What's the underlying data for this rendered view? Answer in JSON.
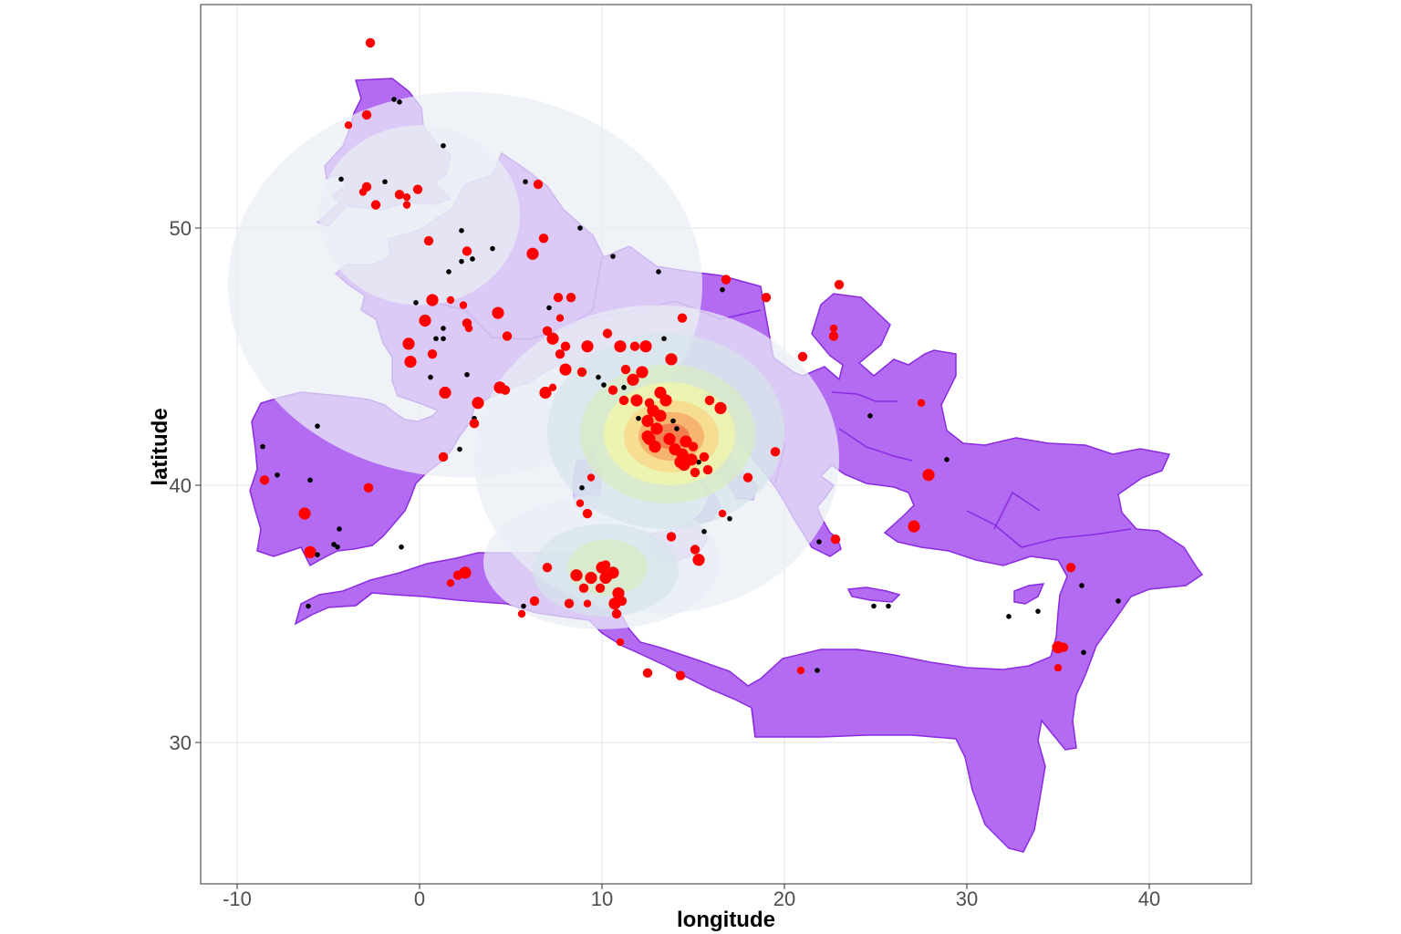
{
  "chart_data": {
    "type": "scatter",
    "title": "",
    "xlabel": "longitude",
    "ylabel": "latitude",
    "xlim": [
      -12.1,
      45.6
    ],
    "ylim": [
      24.6,
      60.5
    ],
    "x_ticks": [
      -10,
      0,
      10,
      20,
      30,
      40
    ],
    "x_tick_labels": [
      "-10",
      "0",
      "10",
      "20",
      "30",
      "40"
    ],
    "y_ticks": [
      30,
      40,
      50
    ],
    "y_tick_labels": [
      "30",
      "40",
      "50"
    ],
    "grid": true,
    "legend": "none",
    "colors": {
      "territory_fill": "#b36bf2",
      "territory_border": "#8a2be2",
      "point_large": "#ff0000",
      "point_small": "#000000",
      "density_palette": [
        "#e9eef5",
        "#d6e4ea",
        "#d8ecc2",
        "#f4f5a6",
        "#fbd487",
        "#f6a45f",
        "#ee6b45"
      ]
    },
    "density_layers": [
      {
        "cx": 2.5,
        "cy": 47.8,
        "rx": 13.0,
        "ry": 7.5,
        "level": 0
      },
      {
        "cx": 13.0,
        "cy": 41.0,
        "rx": 10.0,
        "ry": 6.0,
        "level": 0
      },
      {
        "cx": 10.0,
        "cy": 37.0,
        "rx": 6.5,
        "ry": 2.6,
        "level": 0
      },
      {
        "cx": 0.0,
        "cy": 50.5,
        "rx": 5.5,
        "ry": 3.5,
        "level": 0
      },
      {
        "cx": 13.5,
        "cy": 42.1,
        "rx": 6.5,
        "ry": 3.8,
        "level": 1
      },
      {
        "cx": 10.2,
        "cy": 36.7,
        "rx": 4.0,
        "ry": 1.8,
        "level": 1
      },
      {
        "cx": 13.6,
        "cy": 42.0,
        "rx": 4.8,
        "ry": 2.7,
        "level": 2
      },
      {
        "cx": 10.3,
        "cy": 36.8,
        "rx": 2.2,
        "ry": 1.1,
        "level": 2
      },
      {
        "cx": 13.7,
        "cy": 42.0,
        "rx": 3.6,
        "ry": 2.0,
        "level": 3
      },
      {
        "cx": 13.8,
        "cy": 41.9,
        "rx": 2.6,
        "ry": 1.4,
        "level": 4
      },
      {
        "cx": 13.8,
        "cy": 41.9,
        "rx": 1.8,
        "ry": 0.95,
        "level": 5
      },
      {
        "cx": 13.8,
        "cy": 41.9,
        "rx": 1.0,
        "ry": 0.5,
        "level": 6
      }
    ],
    "points": [
      {
        "x": -2.7,
        "y": 57.2,
        "size": "medium"
      },
      {
        "x": -3.9,
        "y": 54.0,
        "size": "small"
      },
      {
        "x": -2.9,
        "y": 54.4,
        "size": "medium"
      },
      {
        "x": -1.4,
        "y": 55.0,
        "size": "tiny"
      },
      {
        "x": -1.1,
        "y": 54.9,
        "size": "tiny"
      },
      {
        "x": 1.3,
        "y": 53.2,
        "size": "tiny"
      },
      {
        "x": -4.3,
        "y": 51.9,
        "size": "tiny"
      },
      {
        "x": -2.9,
        "y": 51.6,
        "size": "medium"
      },
      {
        "x": -1.9,
        "y": 51.8,
        "size": "tiny"
      },
      {
        "x": -1.1,
        "y": 51.3,
        "size": "medium"
      },
      {
        "x": -0.7,
        "y": 51.2,
        "size": "small"
      },
      {
        "x": -0.1,
        "y": 51.5,
        "size": "medium"
      },
      {
        "x": -2.4,
        "y": 50.9,
        "size": "medium"
      },
      {
        "x": -3.1,
        "y": 51.4,
        "size": "small"
      },
      {
        "x": -0.7,
        "y": 50.9,
        "size": "small"
      },
      {
        "x": 5.8,
        "y": 51.8,
        "size": "tiny"
      },
      {
        "x": 6.5,
        "y": 51.7,
        "size": "medium"
      },
      {
        "x": 8.8,
        "y": 50.0,
        "size": "tiny"
      },
      {
        "x": 2.3,
        "y": 49.9,
        "size": "tiny"
      },
      {
        "x": 0.5,
        "y": 49.5,
        "size": "medium"
      },
      {
        "x": 2.6,
        "y": 49.1,
        "size": "medium"
      },
      {
        "x": 2.9,
        "y": 48.8,
        "size": "tiny"
      },
      {
        "x": 2.3,
        "y": 48.7,
        "size": "tiny"
      },
      {
        "x": 4.0,
        "y": 49.2,
        "size": "tiny"
      },
      {
        "x": 6.8,
        "y": 49.6,
        "size": "medium"
      },
      {
        "x": 6.2,
        "y": 49.0,
        "size": "large"
      },
      {
        "x": 10.6,
        "y": 48.9,
        "size": "tiny"
      },
      {
        "x": 13.1,
        "y": 48.3,
        "size": "tiny"
      },
      {
        "x": 16.8,
        "y": 48.0,
        "size": "medium"
      },
      {
        "x": 16.6,
        "y": 47.6,
        "size": "tiny"
      },
      {
        "x": 19.0,
        "y": 47.3,
        "size": "medium"
      },
      {
        "x": 1.6,
        "y": 48.3,
        "size": "tiny"
      },
      {
        "x": 1.7,
        "y": 47.2,
        "size": "small"
      },
      {
        "x": -0.2,
        "y": 47.1,
        "size": "tiny"
      },
      {
        "x": 0.7,
        "y": 47.2,
        "size": "large"
      },
      {
        "x": 2.4,
        "y": 47.0,
        "size": "small"
      },
      {
        "x": 2.6,
        "y": 46.3,
        "size": "medium"
      },
      {
        "x": 4.3,
        "y": 46.7,
        "size": "large"
      },
      {
        "x": 7.6,
        "y": 47.3,
        "size": "medium"
      },
      {
        "x": 8.3,
        "y": 47.3,
        "size": "medium"
      },
      {
        "x": 7.1,
        "y": 46.9,
        "size": "tiny"
      },
      {
        "x": 7.7,
        "y": 46.5,
        "size": "small"
      },
      {
        "x": 0.3,
        "y": 46.4,
        "size": "large"
      },
      {
        "x": 1.3,
        "y": 46.1,
        "size": "tiny"
      },
      {
        "x": 2.7,
        "y": 46.1,
        "size": "small"
      },
      {
        "x": 0.9,
        "y": 45.7,
        "size": "tiny"
      },
      {
        "x": 1.3,
        "y": 45.7,
        "size": "tiny"
      },
      {
        "x": 4.8,
        "y": 45.8,
        "size": "medium"
      },
      {
        "x": 7.0,
        "y": 46.0,
        "size": "medium"
      },
      {
        "x": 7.3,
        "y": 45.7,
        "size": "large"
      },
      {
        "x": 8.0,
        "y": 45.4,
        "size": "medium"
      },
      {
        "x": 9.2,
        "y": 45.4,
        "size": "large"
      },
      {
        "x": 11.0,
        "y": 45.4,
        "size": "large"
      },
      {
        "x": 11.8,
        "y": 45.4,
        "size": "medium"
      },
      {
        "x": 12.4,
        "y": 45.4,
        "size": "large"
      },
      {
        "x": 13.4,
        "y": 45.7,
        "size": "tiny"
      },
      {
        "x": 14.4,
        "y": 46.5,
        "size": "medium"
      },
      {
        "x": 10.3,
        "y": 45.9,
        "size": "medium"
      },
      {
        "x": -0.6,
        "y": 45.5,
        "size": "large"
      },
      {
        "x": 0.7,
        "y": 45.1,
        "size": "medium"
      },
      {
        "x": -0.5,
        "y": 44.8,
        "size": "large"
      },
      {
        "x": 7.7,
        "y": 45.1,
        "size": "medium"
      },
      {
        "x": 8.0,
        "y": 44.5,
        "size": "large"
      },
      {
        "x": 8.9,
        "y": 44.4,
        "size": "medium"
      },
      {
        "x": 9.8,
        "y": 44.2,
        "size": "tiny"
      },
      {
        "x": 11.3,
        "y": 44.5,
        "size": "medium"
      },
      {
        "x": 11.7,
        "y": 44.1,
        "size": "large"
      },
      {
        "x": 12.2,
        "y": 44.4,
        "size": "large"
      },
      {
        "x": 13.8,
        "y": 44.9,
        "size": "large"
      },
      {
        "x": 10.1,
        "y": 43.9,
        "size": "tiny"
      },
      {
        "x": 10.6,
        "y": 43.7,
        "size": "medium"
      },
      {
        "x": 11.2,
        "y": 43.8,
        "size": "tiny"
      },
      {
        "x": 11.2,
        "y": 43.3,
        "size": "medium"
      },
      {
        "x": 11.9,
        "y": 43.3,
        "size": "large"
      },
      {
        "x": 12.6,
        "y": 43.2,
        "size": "medium"
      },
      {
        "x": 13.2,
        "y": 43.6,
        "size": "large"
      },
      {
        "x": 13.5,
        "y": 43.3,
        "size": "large"
      },
      {
        "x": 15.9,
        "y": 43.3,
        "size": "medium"
      },
      {
        "x": 16.5,
        "y": 43.0,
        "size": "large"
      },
      {
        "x": 0.6,
        "y": 44.2,
        "size": "tiny"
      },
      {
        "x": 1.4,
        "y": 43.6,
        "size": "large"
      },
      {
        "x": 2.6,
        "y": 44.3,
        "size": "tiny"
      },
      {
        "x": 3.2,
        "y": 43.2,
        "size": "large"
      },
      {
        "x": 4.4,
        "y": 43.8,
        "size": "large"
      },
      {
        "x": 4.7,
        "y": 43.7,
        "size": "medium"
      },
      {
        "x": 6.9,
        "y": 43.6,
        "size": "large"
      },
      {
        "x": 7.3,
        "y": 43.8,
        "size": "small"
      },
      {
        "x": 3.0,
        "y": 42.6,
        "size": "tiny"
      },
      {
        "x": 3.0,
        "y": 42.4,
        "size": "medium"
      },
      {
        "x": 12.0,
        "y": 42.6,
        "size": "tiny"
      },
      {
        "x": 12.5,
        "y": 42.5,
        "size": "large"
      },
      {
        "x": 12.8,
        "y": 42.9,
        "size": "large"
      },
      {
        "x": 13.0,
        "y": 42.2,
        "size": "large"
      },
      {
        "x": 13.2,
        "y": 42.7,
        "size": "large"
      },
      {
        "x": 12.6,
        "y": 41.8,
        "size": "large"
      },
      {
        "x": 12.5,
        "y": 41.9,
        "size": "large"
      },
      {
        "x": 12.9,
        "y": 41.5,
        "size": "large"
      },
      {
        "x": 13.7,
        "y": 41.8,
        "size": "large"
      },
      {
        "x": 14.1,
        "y": 42.2,
        "size": "tiny"
      },
      {
        "x": 14.0,
        "y": 41.4,
        "size": "large"
      },
      {
        "x": 14.4,
        "y": 41.2,
        "size": "large"
      },
      {
        "x": 14.3,
        "y": 40.9,
        "size": "large"
      },
      {
        "x": 14.5,
        "y": 40.8,
        "size": "large"
      },
      {
        "x": 14.6,
        "y": 41.7,
        "size": "large"
      },
      {
        "x": 15.0,
        "y": 41.5,
        "size": "medium"
      },
      {
        "x": 15.3,
        "y": 40.9,
        "size": "tiny"
      },
      {
        "x": 15.1,
        "y": 40.5,
        "size": "medium"
      },
      {
        "x": 15.6,
        "y": 41.1,
        "size": "medium"
      },
      {
        "x": 15.8,
        "y": 40.6,
        "size": "medium"
      },
      {
        "x": 13.9,
        "y": 42.5,
        "size": "tiny"
      },
      {
        "x": 14.9,
        "y": 41.0,
        "size": "large"
      },
      {
        "x": 18.0,
        "y": 40.3,
        "size": "medium"
      },
      {
        "x": 19.5,
        "y": 41.3,
        "size": "medium"
      },
      {
        "x": 21.0,
        "y": 45.0,
        "size": "medium"
      },
      {
        "x": 22.7,
        "y": 46.1,
        "size": "small"
      },
      {
        "x": 22.7,
        "y": 45.8,
        "size": "medium"
      },
      {
        "x": 23.0,
        "y": 47.8,
        "size": "medium"
      },
      {
        "x": 24.7,
        "y": 42.7,
        "size": "tiny"
      },
      {
        "x": 27.5,
        "y": 43.2,
        "size": "small"
      },
      {
        "x": 28.9,
        "y": 41.0,
        "size": "tiny"
      },
      {
        "x": 27.9,
        "y": 40.4,
        "size": "large"
      },
      {
        "x": 27.1,
        "y": 38.4,
        "size": "large"
      },
      {
        "x": 22.8,
        "y": 37.9,
        "size": "medium"
      },
      {
        "x": 21.9,
        "y": 37.8,
        "size": "tiny"
      },
      {
        "x": 24.9,
        "y": 35.3,
        "size": "tiny"
      },
      {
        "x": 25.7,
        "y": 35.3,
        "size": "tiny"
      },
      {
        "x": 32.3,
        "y": 34.9,
        "size": "tiny"
      },
      {
        "x": 33.9,
        "y": 35.1,
        "size": "tiny"
      },
      {
        "x": 35.7,
        "y": 36.8,
        "size": "medium"
      },
      {
        "x": 36.3,
        "y": 36.1,
        "size": "tiny"
      },
      {
        "x": 38.3,
        "y": 35.5,
        "size": "tiny"
      },
      {
        "x": 35.0,
        "y": 33.7,
        "size": "large"
      },
      {
        "x": 35.3,
        "y": 33.7,
        "size": "medium"
      },
      {
        "x": 36.4,
        "y": 33.5,
        "size": "tiny"
      },
      {
        "x": 35.0,
        "y": 32.9,
        "size": "small"
      },
      {
        "x": 20.9,
        "y": 32.8,
        "size": "small"
      },
      {
        "x": 21.8,
        "y": 32.8,
        "size": "tiny"
      },
      {
        "x": -8.6,
        "y": 41.5,
        "size": "tiny"
      },
      {
        "x": -8.5,
        "y": 40.2,
        "size": "medium"
      },
      {
        "x": -7.8,
        "y": 40.4,
        "size": "tiny"
      },
      {
        "x": -5.6,
        "y": 42.3,
        "size": "tiny"
      },
      {
        "x": -6.0,
        "y": 40.2,
        "size": "tiny"
      },
      {
        "x": -2.8,
        "y": 39.9,
        "size": "medium"
      },
      {
        "x": -6.3,
        "y": 38.9,
        "size": "large"
      },
      {
        "x": -6.0,
        "y": 37.4,
        "size": "large"
      },
      {
        "x": -5.6,
        "y": 37.3,
        "size": "tiny"
      },
      {
        "x": -4.4,
        "y": 38.3,
        "size": "tiny"
      },
      {
        "x": -4.7,
        "y": 37.7,
        "size": "tiny"
      },
      {
        "x": -4.5,
        "y": 37.6,
        "size": "tiny"
      },
      {
        "x": -1.0,
        "y": 37.6,
        "size": "tiny"
      },
      {
        "x": 1.3,
        "y": 41.1,
        "size": "medium"
      },
      {
        "x": 2.2,
        "y": 41.4,
        "size": "tiny"
      },
      {
        "x": -6.1,
        "y": 35.3,
        "size": "tiny"
      },
      {
        "x": 2.1,
        "y": 36.5,
        "size": "medium"
      },
      {
        "x": 1.7,
        "y": 36.2,
        "size": "small"
      },
      {
        "x": 2.5,
        "y": 36.6,
        "size": "large"
      },
      {
        "x": 5.7,
        "y": 35.3,
        "size": "tiny"
      },
      {
        "x": 5.6,
        "y": 35.0,
        "size": "small"
      },
      {
        "x": 6.3,
        "y": 35.5,
        "size": "medium"
      },
      {
        "x": 7.0,
        "y": 36.8,
        "size": "medium"
      },
      {
        "x": 8.6,
        "y": 36.5,
        "size": "large"
      },
      {
        "x": 8.2,
        "y": 35.4,
        "size": "medium"
      },
      {
        "x": 9.0,
        "y": 36.0,
        "size": "medium"
      },
      {
        "x": 9.4,
        "y": 36.4,
        "size": "large"
      },
      {
        "x": 9.2,
        "y": 35.4,
        "size": "small"
      },
      {
        "x": 10.0,
        "y": 36.8,
        "size": "large"
      },
      {
        "x": 10.2,
        "y": 36.4,
        "size": "large"
      },
      {
        "x": 10.4,
        "y": 36.5,
        "size": "medium"
      },
      {
        "x": 10.2,
        "y": 36.9,
        "size": "medium"
      },
      {
        "x": 10.6,
        "y": 36.6,
        "size": "large"
      },
      {
        "x": 10.9,
        "y": 35.8,
        "size": "large"
      },
      {
        "x": 11.1,
        "y": 35.5,
        "size": "medium"
      },
      {
        "x": 10.7,
        "y": 35.4,
        "size": "large"
      },
      {
        "x": 10.8,
        "y": 35.0,
        "size": "medium"
      },
      {
        "x": 9.9,
        "y": 36.0,
        "size": "medium"
      },
      {
        "x": 11.0,
        "y": 33.9,
        "size": "small"
      },
      {
        "x": 12.5,
        "y": 32.7,
        "size": "medium"
      },
      {
        "x": 14.3,
        "y": 32.6,
        "size": "medium"
      },
      {
        "x": 9.4,
        "y": 40.3,
        "size": "small"
      },
      {
        "x": 9.2,
        "y": 38.9,
        "size": "medium"
      },
      {
        "x": 8.9,
        "y": 39.9,
        "size": "tiny"
      },
      {
        "x": 8.8,
        "y": 39.3,
        "size": "small"
      },
      {
        "x": 13.8,
        "y": 38.0,
        "size": "medium"
      },
      {
        "x": 15.1,
        "y": 37.5,
        "size": "medium"
      },
      {
        "x": 15.3,
        "y": 37.1,
        "size": "large"
      },
      {
        "x": 15.6,
        "y": 38.2,
        "size": "tiny"
      },
      {
        "x": 16.6,
        "y": 38.9,
        "size": "small"
      },
      {
        "x": 17.0,
        "y": 38.7,
        "size": "tiny"
      }
    ]
  }
}
